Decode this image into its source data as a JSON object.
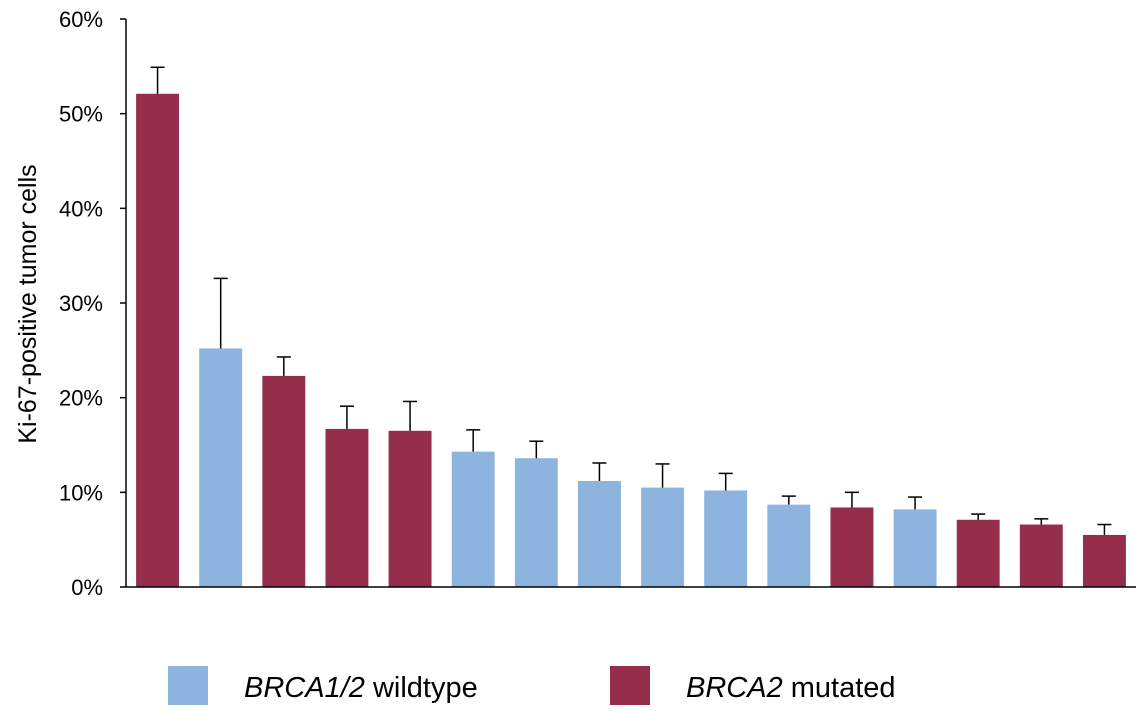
{
  "chart_data": {
    "type": "bar",
    "title": "",
    "xlabel": "",
    "ylabel": "Ki-67-positive tumor cells",
    "ylim": [
      0,
      60
    ],
    "yticks": [
      "0%",
      "10%",
      "20%",
      "30%",
      "40%",
      "50%",
      "60%"
    ],
    "grid": false,
    "legend_position": "bottom",
    "colors": {
      "wildtype": "#8db3df",
      "mutated": "#952d4c"
    },
    "legend": [
      {
        "group": "wildtype",
        "italic": "BRCA1/2",
        "text": " wildtype"
      },
      {
        "group": "mutated",
        "italic": "BRCA2",
        "text": " mutated"
      }
    ],
    "bars": [
      {
        "value": 52.1,
        "error": 2.8,
        "group": "mutated"
      },
      {
        "value": 25.2,
        "error": 7.4,
        "group": "wildtype"
      },
      {
        "value": 22.3,
        "error": 2.0,
        "group": "mutated"
      },
      {
        "value": 16.7,
        "error": 2.4,
        "group": "mutated"
      },
      {
        "value": 16.5,
        "error": 3.1,
        "group": "mutated"
      },
      {
        "value": 14.3,
        "error": 2.3,
        "group": "wildtype"
      },
      {
        "value": 13.6,
        "error": 1.8,
        "group": "wildtype"
      },
      {
        "value": 11.2,
        "error": 1.9,
        "group": "wildtype"
      },
      {
        "value": 10.5,
        "error": 2.5,
        "group": "wildtype"
      },
      {
        "value": 10.2,
        "error": 1.8,
        "group": "wildtype"
      },
      {
        "value": 8.7,
        "error": 0.9,
        "group": "wildtype"
      },
      {
        "value": 8.4,
        "error": 1.6,
        "group": "mutated"
      },
      {
        "value": 8.2,
        "error": 1.3,
        "group": "wildtype"
      },
      {
        "value": 7.1,
        "error": 0.6,
        "group": "mutated"
      },
      {
        "value": 6.6,
        "error": 0.6,
        "group": "mutated"
      },
      {
        "value": 5.5,
        "error": 1.1,
        "group": "mutated"
      }
    ]
  }
}
